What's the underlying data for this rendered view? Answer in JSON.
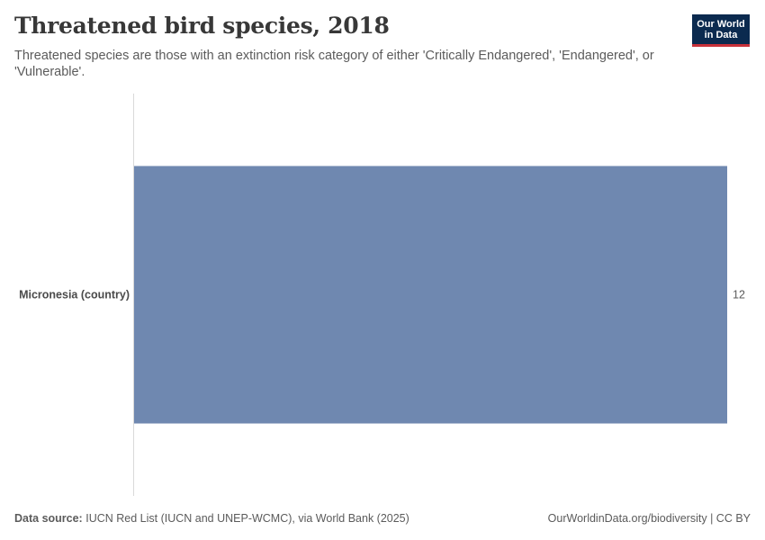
{
  "header": {
    "title": "Threatened bird species, 2018",
    "subtitle": "Threatened species are those with an extinction risk category of either 'Critically Endangered', 'Endangered', or 'Vulnerable'."
  },
  "logo": {
    "line1": "Our World",
    "line2": "in Data"
  },
  "footer": {
    "source_label": "Data source:",
    "source_text": "IUCN Red List (IUCN and UNEP-WCMC), via World Bank (2025)",
    "link_text": "OurWorldinData.org/biodiversity | CC BY"
  },
  "colors": {
    "bar": "#6f88b0",
    "axis": "#d9d9d9",
    "logo_bg": "#0b2a4f",
    "logo_accent": "#c8313a"
  },
  "chart_data": {
    "type": "bar",
    "orientation": "horizontal",
    "title": "Threatened bird species, 2018",
    "categories": [
      "Micronesia (country)"
    ],
    "values": [
      12
    ],
    "value_labels": [
      "12"
    ],
    "xlim": [
      0,
      12
    ]
  }
}
